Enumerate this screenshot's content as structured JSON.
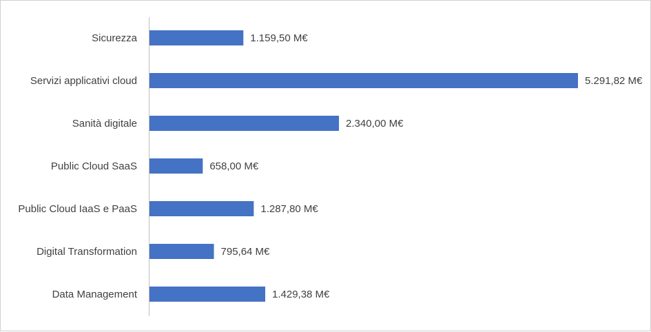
{
  "chart_data": {
    "type": "bar",
    "orientation": "horizontal",
    "categories": [
      "Sicurezza",
      "Servizi applicativi cloud",
      "Sanità digitale",
      "Public Cloud SaaS",
      "Public Cloud IaaS e PaaS",
      "Digital Transformation",
      "Data Management"
    ],
    "values": [
      1159.5,
      5291.82,
      2340.0,
      658.0,
      1287.8,
      795.64,
      1429.38
    ],
    "value_labels": [
      "1.159,50 M€",
      "5.291,82 M€",
      "2.340,00 M€",
      "658,00 M€",
      "1.287,80 M€",
      "795,64 M€",
      "1.429,38 M€"
    ],
    "bar_color": "#4472c4",
    "grid": false,
    "legend": "none",
    "xlim": [
      0,
      5291.82
    ]
  }
}
